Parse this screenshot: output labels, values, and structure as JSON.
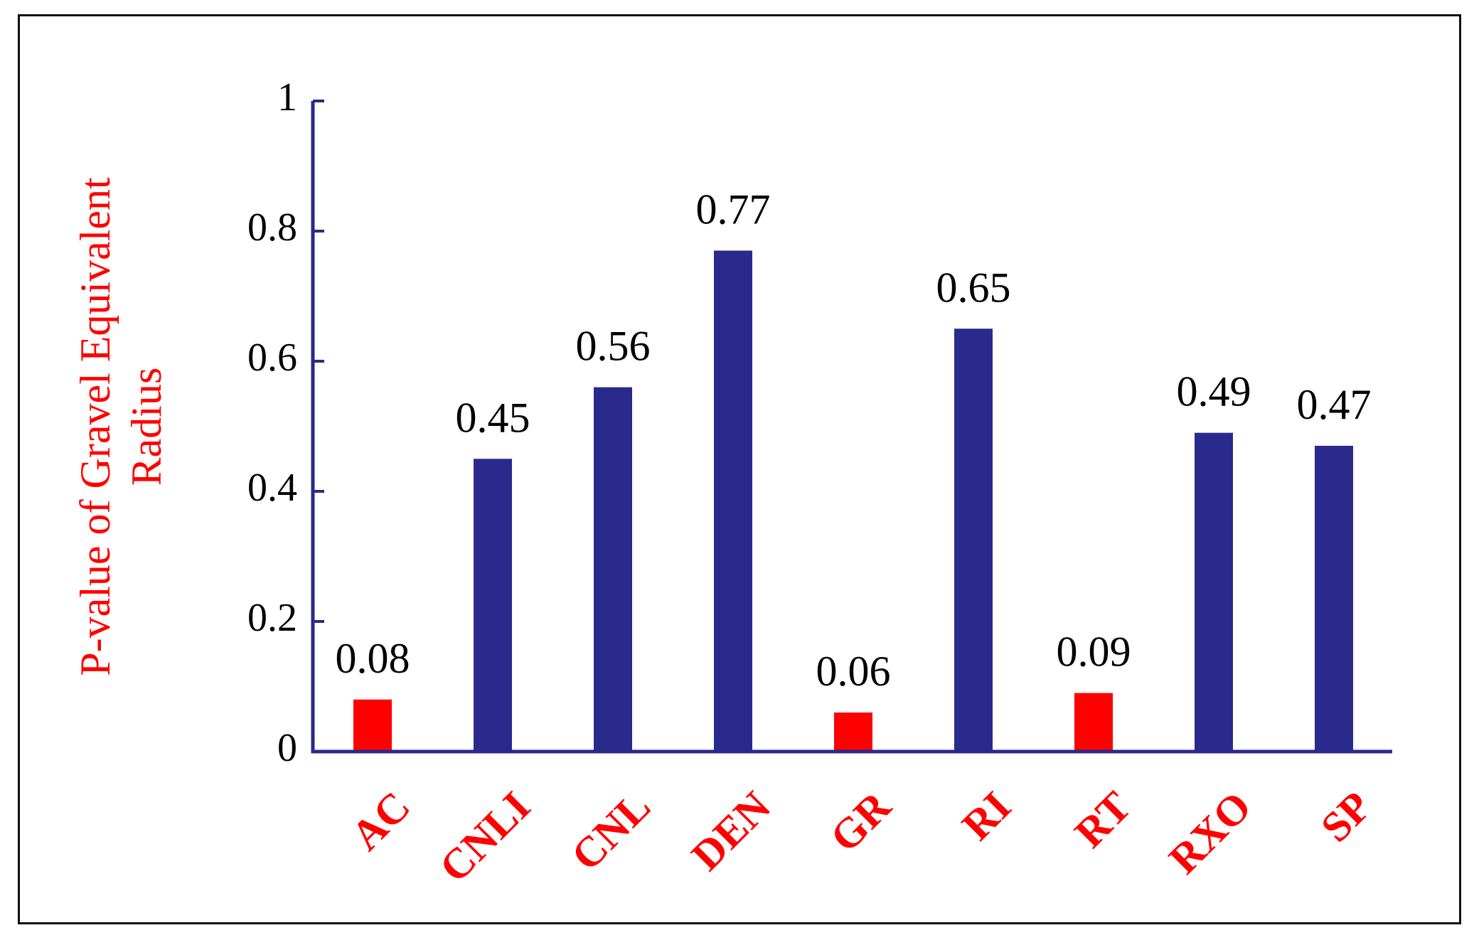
{
  "chart_data": {
    "type": "bar",
    "title": "",
    "xlabel": "",
    "ylabel": "P-value of Gravel Equivalent Radius",
    "ylabel_lines": [
      "P-value of Gravel Equivalent",
      "Radius"
    ],
    "categories": [
      "AC",
      "CNLI",
      "CNL",
      "DEN",
      "GR",
      "RI",
      "RT",
      "RXO",
      "SP"
    ],
    "values": [
      0.08,
      0.45,
      0.56,
      0.77,
      0.06,
      0.65,
      0.09,
      0.49,
      0.47
    ],
    "value_labels": [
      "0.08",
      "0.45",
      "0.56",
      "0.77",
      "0.06",
      "0.65",
      "0.09",
      "0.49",
      "0.47"
    ],
    "highlight": [
      true,
      false,
      false,
      false,
      true,
      false,
      true,
      false,
      false
    ],
    "ylim": [
      0,
      1
    ],
    "yticks": [
      0,
      0.2,
      0.4,
      0.6,
      0.8,
      1
    ],
    "ytick_labels": [
      "0",
      "0.2",
      "0.4",
      "0.6",
      "0.8",
      "1"
    ],
    "grid": false,
    "legend": "none",
    "colors": {
      "bar": "#2a2a8c",
      "highlight_bar": "#ff0000",
      "axis": "#2a2a8c",
      "category_label": "#ff0000",
      "ylabel": "#ff0000",
      "tick_label": "#000000",
      "frame": "#111111"
    }
  }
}
